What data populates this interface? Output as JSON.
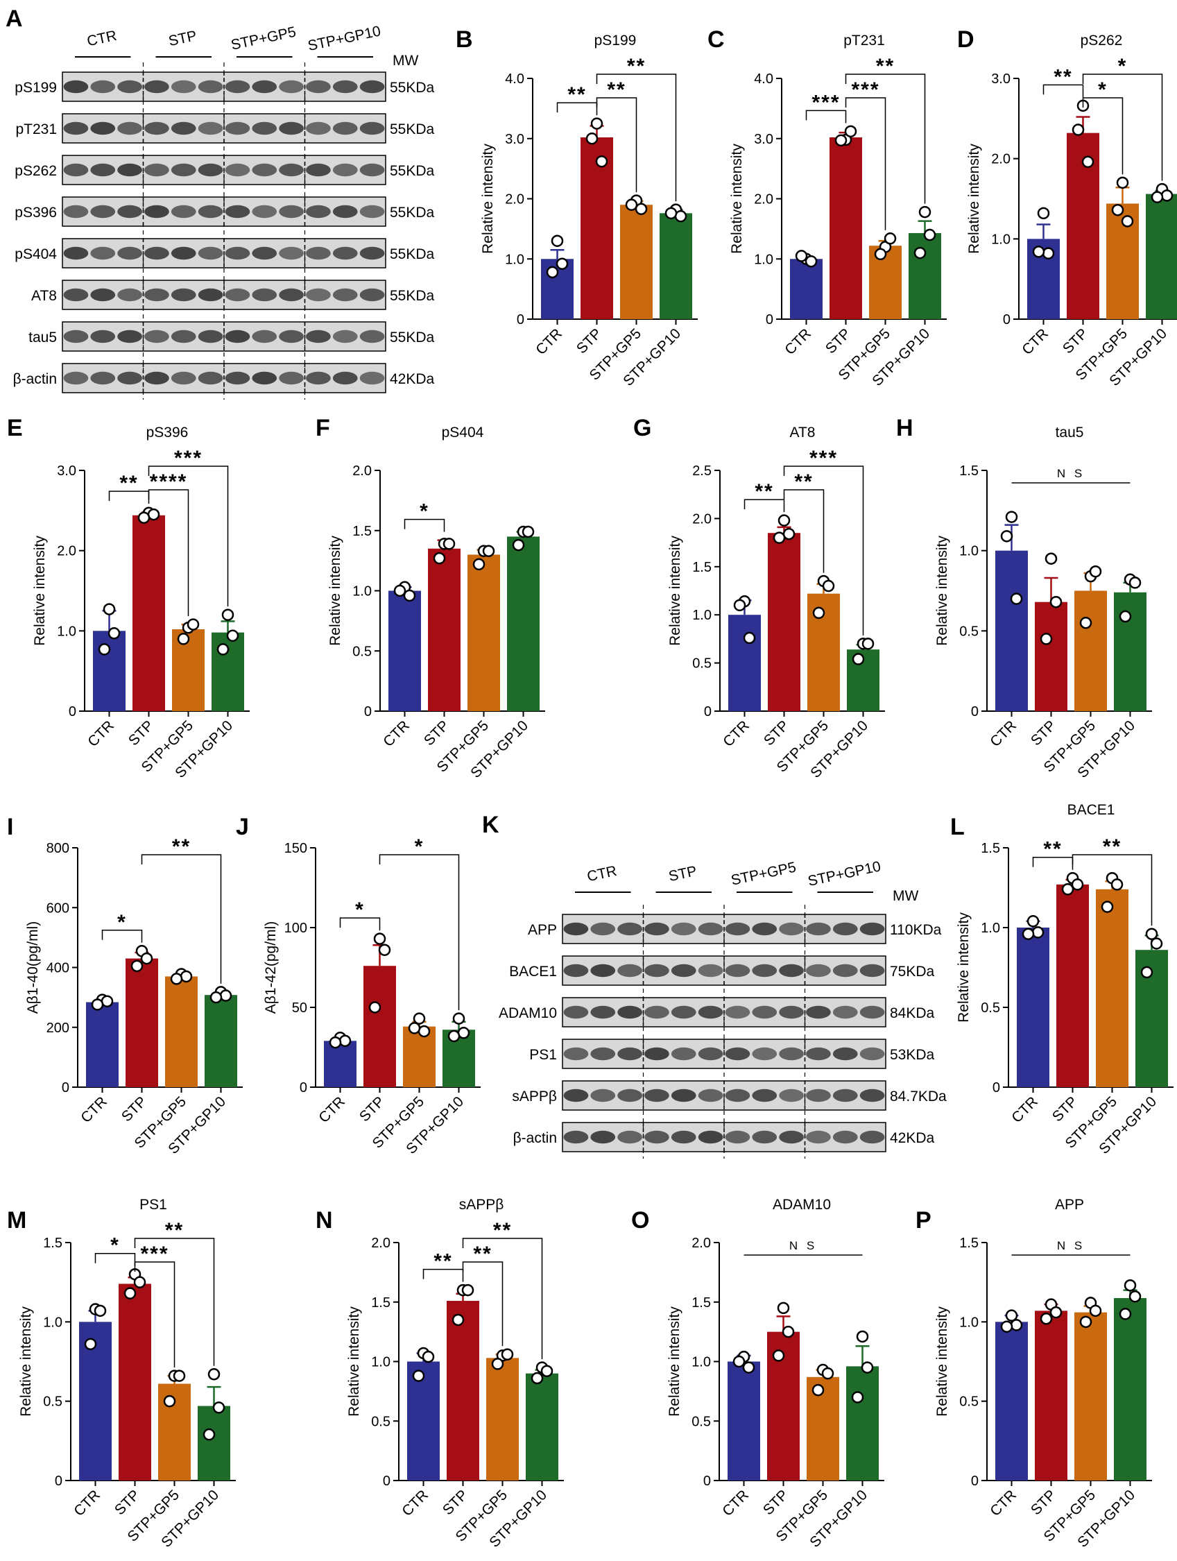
{
  "colors": {
    "CTR": "#2e3192",
    "STP": "#a40e14",
    "STP+GP5": "#c96a10",
    "STP+GP10": "#1f6b2a",
    "text": "#000000"
  },
  "groups": [
    "CTR",
    "STP",
    "STP+GP5",
    "STP+GP10"
  ],
  "ylabel": "Relative intensity",
  "mw_label": "MW",
  "blots": [
    {
      "panel": "A",
      "rows": [
        {
          "label": "pS199",
          "mw": "55KDa"
        },
        {
          "label": "pT231",
          "mw": "55KDa"
        },
        {
          "label": "pS262",
          "mw": "55KDa"
        },
        {
          "label": "pS396",
          "mw": "55KDa"
        },
        {
          "label": "pS404",
          "mw": "55KDa"
        },
        {
          "label": "AT8",
          "mw": "55KDa"
        },
        {
          "label": "tau5",
          "mw": "55KDa"
        },
        {
          "label": "β-actin",
          "mw": "42KDa"
        }
      ]
    },
    {
      "panel": "K",
      "rows": [
        {
          "label": "APP",
          "mw": "110KDa"
        },
        {
          "label": "BACE1",
          "mw": "75KDa"
        },
        {
          "label": "ADAM10",
          "mw": "84KDa"
        },
        {
          "label": "PS1",
          "mw": "53KDa"
        },
        {
          "label": "sAPPβ",
          "mw": "84.7KDa"
        },
        {
          "label": "β-actin",
          "mw": "42KDa"
        }
      ]
    }
  ],
  "chart_data": [
    {
      "panel": "B",
      "type": "bar",
      "title": "pS199",
      "ylabel": "Relative intensity",
      "categories": [
        "CTR",
        "STP",
        "STP+GP5",
        "STP+GP10"
      ],
      "ylim": [
        0,
        4
      ],
      "yticks": [
        "0",
        "1.0",
        "2.0",
        "3.0",
        "4.0"
      ],
      "values": [
        1.0,
        3.02,
        1.9,
        1.76
      ],
      "errors": [
        0.15,
        0.19,
        0.06,
        0.06
      ],
      "points": [
        [
          1.3,
          0.92,
          0.78
        ],
        [
          3.25,
          2.62,
          3.0
        ],
        [
          1.97,
          1.83,
          1.9
        ],
        [
          1.82,
          1.71,
          1.76
        ]
      ],
      "annotations": [
        {
          "text": "**",
          "from": "CTR",
          "to": "STP"
        },
        {
          "text": "**",
          "from": "STP",
          "to": "STP+GP5"
        },
        {
          "text": "**",
          "from": "STP",
          "to": "STP+GP10"
        }
      ]
    },
    {
      "panel": "C",
      "type": "bar",
      "title": "pT231",
      "ylabel": "Relative intensity",
      "categories": [
        "CTR",
        "STP",
        "STP+GP5",
        "STP+GP10"
      ],
      "ylim": [
        0,
        4
      ],
      "yticks": [
        "0",
        "1.0",
        "2.0",
        "3.0",
        "4.0"
      ],
      "values": [
        1.0,
        3.02,
        1.22,
        1.43
      ],
      "errors": [
        0.04,
        0.08,
        0.08,
        0.2
      ],
      "points": [
        [
          1.0,
          0.96,
          1.05
        ],
        [
          2.98,
          3.12,
          2.97
        ],
        [
          1.2,
          1.34,
          1.08
        ],
        [
          1.78,
          1.4,
          1.1
        ]
      ],
      "annotations": [
        {
          "text": "***",
          "from": "CTR",
          "to": "STP"
        },
        {
          "text": "***",
          "from": "STP",
          "to": "STP+GP5"
        },
        {
          "text": "**",
          "from": "STP",
          "to": "STP+GP10"
        }
      ]
    },
    {
      "panel": "D",
      "type": "bar",
      "title": "pS262",
      "ylabel": "Relative intensity",
      "categories": [
        "CTR",
        "STP",
        "STP+GP5",
        "STP+GP10"
      ],
      "ylim": [
        0,
        3
      ],
      "yticks": [
        "0",
        "1.0",
        "2.0",
        "3.0"
      ],
      "values": [
        1.0,
        2.32,
        1.44,
        1.56
      ],
      "errors": [
        0.18,
        0.2,
        0.2,
        0.04
      ],
      "points": [
        [
          1.32,
          0.82,
          0.84
        ],
        [
          2.66,
          1.96,
          2.36
        ],
        [
          1.7,
          1.22,
          1.36
        ],
        [
          1.62,
          1.54,
          1.52
        ]
      ],
      "annotations": [
        {
          "text": "**",
          "from": "CTR",
          "to": "STP"
        },
        {
          "text": "*",
          "from": "STP",
          "to": "STP+GP5"
        },
        {
          "text": "*",
          "from": "STP",
          "to": "STP+GP10"
        }
      ]
    },
    {
      "panel": "E",
      "type": "bar",
      "title": "pS396",
      "ylabel": "Relative intensity",
      "categories": [
        "CTR",
        "STP",
        "STP+GP5",
        "STP+GP10"
      ],
      "ylim": [
        0,
        3
      ],
      "yticks": [
        "0",
        "1.0",
        "2.0",
        "3.0"
      ],
      "values": [
        1.0,
        2.44,
        1.02,
        0.98
      ],
      "errors": [
        0.25,
        0.04,
        0.06,
        0.14
      ],
      "points": [
        [
          1.27,
          0.97,
          0.77
        ],
        [
          2.47,
          2.45,
          2.41
        ],
        [
          1.04,
          1.08,
          0.9
        ],
        [
          1.2,
          0.94,
          0.77
        ]
      ],
      "annotations": [
        {
          "text": "**",
          "from": "CTR",
          "to": "STP"
        },
        {
          "text": "****",
          "from": "STP",
          "to": "STP+GP5"
        },
        {
          "text": "***",
          "from": "STP",
          "to": "STP+GP10"
        }
      ]
    },
    {
      "panel": "F",
      "type": "bar",
      "title": "pS404",
      "ylabel": "Relative intensity",
      "categories": [
        "CTR",
        "STP",
        "STP+GP5",
        "STP+GP10"
      ],
      "ylim": [
        0,
        2
      ],
      "yticks": [
        "0",
        "0.5",
        "1.0",
        "1.5",
        "2.0"
      ],
      "values": [
        1.0,
        1.35,
        1.3,
        1.45
      ],
      "errors": [
        0.03,
        0.07,
        0.04,
        0.04
      ],
      "points": [
        [
          1.03,
          0.96,
          1.0
        ],
        [
          1.39,
          1.39,
          1.27
        ],
        [
          1.33,
          1.33,
          1.22
        ],
        [
          1.49,
          1.49,
          1.38
        ]
      ],
      "annotations": [
        {
          "text": "*",
          "from": "CTR",
          "to": "STP"
        }
      ]
    },
    {
      "panel": "G",
      "type": "bar",
      "title": "AT8",
      "ylabel": "Relative intensity",
      "categories": [
        "CTR",
        "STP",
        "STP+GP5",
        "STP+GP10"
      ],
      "ylim": [
        0,
        2.5
      ],
      "yticks": [
        "0",
        "0.5",
        "1.0",
        "1.5",
        "2.0",
        "2.5"
      ],
      "values": [
        1.0,
        1.85,
        1.22,
        0.64
      ],
      "errors": [
        0.15,
        0.06,
        0.1,
        0.05
      ],
      "points": [
        [
          1.14,
          0.76,
          1.1
        ],
        [
          1.98,
          1.84,
          1.8
        ],
        [
          1.35,
          1.3,
          1.02
        ],
        [
          0.7,
          0.7,
          0.54
        ]
      ],
      "annotations": [
        {
          "text": "**",
          "from": "CTR",
          "to": "STP"
        },
        {
          "text": "**",
          "from": "STP",
          "to": "STP+GP5"
        },
        {
          "text": "***",
          "from": "STP",
          "to": "STP+GP10"
        }
      ]
    },
    {
      "panel": "H",
      "type": "bar",
      "title": "tau5",
      "ylabel": "Relative intensity",
      "categories": [
        "CTR",
        "STP",
        "STP+GP5",
        "STP+GP10"
      ],
      "ylim": [
        0,
        1.5
      ],
      "yticks": [
        "0",
        "0.5",
        "1.0",
        "1.5"
      ],
      "values": [
        1.0,
        0.68,
        0.75,
        0.74
      ],
      "errors": [
        0.16,
        0.15,
        0.11,
        0.06
      ],
      "points": [
        [
          1.21,
          0.7,
          1.09
        ],
        [
          0.95,
          0.68,
          0.45
        ],
        [
          0.84,
          0.87,
          0.55
        ],
        [
          0.82,
          0.8,
          0.59
        ]
      ],
      "annotations": [
        {
          "text": "N S",
          "from": "CTR",
          "to": "STP+GP10"
        }
      ]
    },
    {
      "panel": "I",
      "type": "bar",
      "title": "",
      "ylabel": "Aβ1-40(pg/ml)",
      "categories": [
        "CTR",
        "STP",
        "STP+GP5",
        "STP+GP10"
      ],
      "ylim": [
        0,
        800
      ],
      "yticks": [
        "0",
        "200",
        "400",
        "600",
        "800"
      ],
      "values": [
        284,
        430,
        370,
        308
      ],
      "errors": [
        8,
        20,
        6,
        8
      ],
      "points": [
        [
          292,
          287,
          276
        ],
        [
          455,
          430,
          405
        ],
        [
          378,
          370,
          362
        ],
        [
          318,
          306,
          300
        ]
      ],
      "annotations": [
        {
          "text": "*",
          "from": "CTR",
          "to": "STP"
        },
        {
          "text": "**",
          "from": "STP",
          "to": "STP+GP10"
        }
      ]
    },
    {
      "panel": "J",
      "type": "bar",
      "title": "",
      "ylabel": "Aβ1-42(pg/ml)",
      "categories": [
        "CTR",
        "STP",
        "STP+GP5",
        "STP+GP10"
      ],
      "ylim": [
        0,
        150
      ],
      "yticks": [
        "0",
        "50",
        "100",
        "150"
      ],
      "values": [
        29,
        76,
        38,
        36
      ],
      "errors": [
        1,
        13,
        3,
        5
      ],
      "points": [
        [
          31,
          29,
          28
        ],
        [
          93,
          86,
          50
        ],
        [
          43,
          35,
          37
        ],
        [
          43,
          34,
          32
        ]
      ],
      "annotations": [
        {
          "text": "*",
          "from": "CTR",
          "to": "STP"
        },
        {
          "text": "*",
          "from": "STP",
          "to": "STP+GP10"
        }
      ]
    },
    {
      "panel": "L",
      "type": "bar",
      "title": "BACE1",
      "ylabel": "Relative intensity",
      "categories": [
        "CTR",
        "STP",
        "STP+GP5",
        "STP+GP10"
      ],
      "ylim": [
        0,
        1.5
      ],
      "yticks": [
        "0",
        "0.5",
        "1.0",
        "1.5"
      ],
      "values": [
        1.0,
        1.27,
        1.24,
        0.86
      ],
      "errors": [
        0.04,
        0.03,
        0.05,
        0.09
      ],
      "points": [
        [
          1.04,
          0.97,
          0.96
        ],
        [
          1.31,
          1.27,
          1.24
        ],
        [
          1.31,
          1.27,
          1.13
        ],
        [
          0.96,
          0.9,
          0.72
        ]
      ],
      "annotations": [
        {
          "text": "**",
          "from": "CTR",
          "to": "STP"
        },
        {
          "text": "**",
          "from": "STP",
          "to": "STP+GP10"
        }
      ]
    },
    {
      "panel": "M",
      "type": "bar",
      "title": "PS1",
      "ylabel": "Relative intensity",
      "categories": [
        "CTR",
        "STP",
        "STP+GP5",
        "STP+GP10"
      ],
      "ylim": [
        0,
        1.5
      ],
      "yticks": [
        "0",
        "0.5",
        "1.0",
        "1.5"
      ],
      "values": [
        1.0,
        1.24,
        0.61,
        0.47
      ],
      "errors": [
        0.07,
        0.04,
        0.05,
        0.12
      ],
      "points": [
        [
          1.08,
          1.07,
          0.86
        ],
        [
          1.3,
          1.25,
          1.18
        ],
        [
          0.66,
          0.66,
          0.5
        ],
        [
          0.67,
          0.46,
          0.29
        ]
      ],
      "annotations": [
        {
          "text": "*",
          "from": "CTR",
          "to": "STP"
        },
        {
          "text": "***",
          "from": "STP",
          "to": "STP+GP5"
        },
        {
          "text": "**",
          "from": "STP",
          "to": "STP+GP10"
        }
      ]
    },
    {
      "panel": "N",
      "type": "bar",
      "title": "sAPPβ",
      "ylabel": "Relative intensity",
      "categories": [
        "CTR",
        "STP",
        "STP+GP5",
        "STP+GP10"
      ],
      "ylim": [
        0,
        2
      ],
      "yticks": [
        "0",
        "0.5",
        "1.0",
        "1.5",
        "2.0"
      ],
      "values": [
        1.0,
        1.51,
        1.03,
        0.9
      ],
      "errors": [
        0.07,
        0.06,
        0.03,
        0.03
      ],
      "points": [
        [
          1.07,
          1.04,
          0.88
        ],
        [
          1.6,
          1.6,
          1.35
        ],
        [
          1.05,
          1.06,
          0.98
        ],
        [
          0.95,
          0.92,
          0.86
        ]
      ],
      "annotations": [
        {
          "text": "**",
          "from": "CTR",
          "to": "STP"
        },
        {
          "text": "**",
          "from": "STP",
          "to": "STP+GP5"
        },
        {
          "text": "**",
          "from": "STP",
          "to": "STP+GP10"
        }
      ]
    },
    {
      "panel": "O",
      "type": "bar",
      "title": "ADAM10",
      "ylabel": "Relative intensity",
      "categories": [
        "CTR",
        "STP",
        "STP+GP5",
        "STP+GP10"
      ],
      "ylim": [
        0,
        2
      ],
      "yticks": [
        "0",
        "0.5",
        "1.0",
        "1.5",
        "2.0"
      ],
      "values": [
        1.0,
        1.25,
        0.87,
        0.96
      ],
      "errors": [
        0.05,
        0.13,
        0.06,
        0.17
      ],
      "points": [
        [
          1.04,
          0.95,
          1.0
        ],
        [
          1.45,
          1.25,
          1.05
        ],
        [
          0.93,
          0.9,
          0.76
        ],
        [
          1.21,
          0.95,
          0.7
        ]
      ],
      "annotations": [
        {
          "text": "N S",
          "from": "CTR",
          "to": "STP+GP10"
        }
      ]
    },
    {
      "panel": "P",
      "type": "bar",
      "title": "APP",
      "ylabel": "Relative intensity",
      "categories": [
        "CTR",
        "STP",
        "STP+GP5",
        "STP+GP10"
      ],
      "ylim": [
        0,
        1.5
      ],
      "yticks": [
        "0",
        "0.5",
        "1.0",
        "1.5"
      ],
      "values": [
        1.0,
        1.07,
        1.06,
        1.15
      ],
      "errors": [
        0.04,
        0.04,
        0.04,
        0.05
      ],
      "points": [
        [
          1.04,
          0.98,
          0.97
        ],
        [
          1.11,
          1.06,
          1.02
        ],
        [
          1.12,
          1.07,
          1.0
        ],
        [
          1.23,
          1.16,
          1.05
        ]
      ],
      "annotations": [
        {
          "text": "N S",
          "from": "CTR",
          "to": "STP+GP10"
        }
      ]
    }
  ]
}
